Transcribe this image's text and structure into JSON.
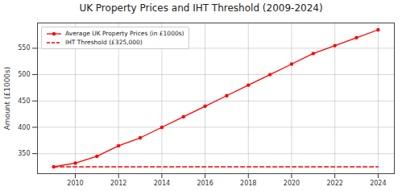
{
  "chart_data": {
    "type": "line",
    "title": "UK Property Prices and IHT Threshold (2009-2024)",
    "y_label": "Amount (£1000s)",
    "x": [
      2009,
      2010,
      2011,
      2012,
      2013,
      2014,
      2015,
      2016,
      2017,
      2018,
      2019,
      2020,
      2021,
      2022,
      2023,
      2024
    ],
    "series": [
      {
        "name": "Average UK Property Prices (in £1000s)",
        "color": "#ff0000",
        "marker": "circle",
        "line_style": "solid",
        "values": [
          325,
          332,
          345,
          365,
          380,
          400,
          420,
          440,
          460,
          480,
          500,
          520,
          540,
          555,
          570,
          585
        ]
      },
      {
        "name": "IHT Threshold (£325,000)",
        "color": "#ff0000",
        "line_style": "dashed",
        "values": [
          325,
          325,
          325,
          325,
          325,
          325,
          325,
          325,
          325,
          325,
          325,
          325,
          325,
          325,
          325,
          325
        ]
      }
    ],
    "xlim": [
      2008.25,
      2024.75
    ],
    "xticks": [
      2010,
      2012,
      2014,
      2016,
      2018,
      2020,
      2022,
      2024
    ],
    "ylim": [
      312,
      598
    ],
    "yticks": [
      350,
      400,
      450,
      500,
      550
    ],
    "grid": true,
    "legend": "upper left"
  }
}
